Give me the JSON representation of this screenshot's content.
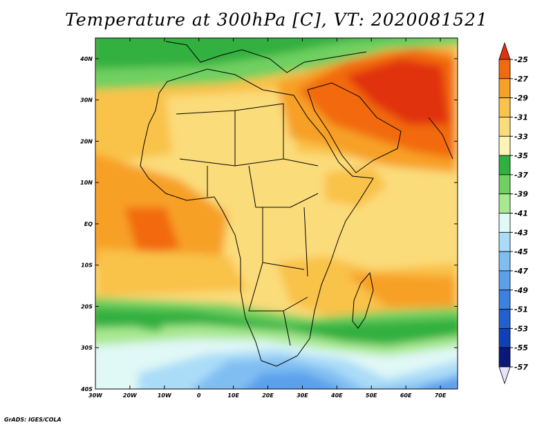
{
  "title": "Temperature at 300hPa [C], VT: 2020081521",
  "credit": "GrADS: IGES/COLA",
  "map": {
    "projection": "lat-lon",
    "lon_range": [
      -30,
      75
    ],
    "lat_range": [
      -40,
      45
    ],
    "lon_ticks": [
      {
        "value": -30,
        "label": "30W"
      },
      {
        "value": -20,
        "label": "20W"
      },
      {
        "value": -10,
        "label": "10W"
      },
      {
        "value": 0,
        "label": "0"
      },
      {
        "value": 10,
        "label": "10E"
      },
      {
        "value": 20,
        "label": "20E"
      },
      {
        "value": 30,
        "label": "30E"
      },
      {
        "value": 40,
        "label": "40E"
      },
      {
        "value": 50,
        "label": "50E"
      },
      {
        "value": 60,
        "label": "60E"
      },
      {
        "value": 70,
        "label": "70E"
      }
    ],
    "lat_ticks": [
      {
        "value": 40,
        "label": "40N"
      },
      {
        "value": 30,
        "label": "30N"
      },
      {
        "value": 20,
        "label": "20N"
      },
      {
        "value": 10,
        "label": "10N"
      },
      {
        "value": 0,
        "label": "EQ"
      },
      {
        "value": -10,
        "label": "10S"
      },
      {
        "value": -20,
        "label": "20S"
      },
      {
        "value": -30,
        "label": "30S"
      },
      {
        "value": -40,
        "label": "40S"
      }
    ]
  },
  "colorbar": {
    "labels": [
      "-25",
      "-27",
      "-29",
      "-31",
      "-33",
      "-35",
      "-37",
      "-39",
      "-41",
      "-43",
      "-45",
      "-47",
      "-49",
      "-51",
      "-53",
      "-55",
      "-57"
    ],
    "colors": [
      "#e0320f",
      "#f26a10",
      "#f7a028",
      "#f9c24a",
      "#fbdc7a",
      "#fdf3b4",
      "#30b040",
      "#70d060",
      "#a8e890",
      "#e0f8f6",
      "#aadcf8",
      "#80bef2",
      "#5ca0ec",
      "#3c80e0",
      "#2260d0",
      "#1040b8",
      "#0a1878",
      "#e8e4f8"
    ]
  }
}
